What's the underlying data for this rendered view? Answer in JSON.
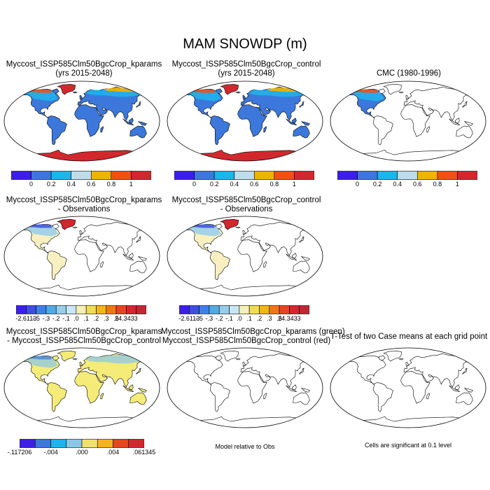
{
  "figure": {
    "title": "MAM SNOWDP (m)"
  },
  "colors": {
    "abs": [
      "#3c1ee8",
      "#3c78dc",
      "#1eb4ec",
      "#bedcec",
      "#f0b400",
      "#f05014",
      "#d2282d"
    ],
    "diff": [
      "#3c1ee8",
      "#3c50dc",
      "#3c82e6",
      "#50aae6",
      "#96cdeb",
      "#c8e6f5",
      "#f5f0b4",
      "#f0dc50",
      "#f5b41e",
      "#f07814",
      "#e6461e",
      "#d2282d",
      "#be2832"
    ],
    "cmp": [
      "#3c1ee8",
      "#3c78dc",
      "#1eb4ec",
      "#8cc8e6",
      "#f0e16e",
      "#f5b41e",
      "#e6461e",
      "#d2282d"
    ],
    "land_blue": "#3c78dc",
    "land_yellow": "#f5eb78"
  },
  "panels": [
    {
      "id": "p1",
      "title_lines": [
        "Myccost_ISSP585Clm50BgcCrop_kparams",
        "(yrs 2015-2048)"
      ],
      "fill": "blue"
    },
    {
      "id": "p2",
      "title_lines": [
        "Myccost_ISSP585Clm50BgcCrop_control",
        "(yrs 2015-2048)"
      ],
      "fill": "blue"
    },
    {
      "id": "p3",
      "title_lines": [
        "CMC (1980-1996)"
      ],
      "fill": "na"
    },
    {
      "id": "p4",
      "title_lines": [
        "Myccost_ISSP585Clm50BgcCrop_kparams",
        "- Observations"
      ],
      "fill": "diff"
    },
    {
      "id": "p5",
      "title_lines": [
        "Myccost_ISSP585Clm50BgcCrop_control",
        "- Observations"
      ],
      "fill": "diff"
    },
    {
      "id": "p6",
      "title_lines": [
        "Myccost_ISSP585Clm50BgcCrop_kparams",
        "- Myccost_ISSP585Clm50BgcCrop_control"
      ],
      "fill": "yellow"
    },
    {
      "id": "p7",
      "title_lines": [
        "Myccost_ISSP585Clm50BgcCrop_kparams (green)",
        "Myccost_ISSP585Clm50BgcCrop_control (red)"
      ],
      "fill": "none"
    },
    {
      "id": "p8",
      "title_lines": [
        "T-Test of two Case means at each grid point"
      ],
      "fill": "none"
    }
  ],
  "colorbars": {
    "abs_labels": [
      "0",
      "0.2",
      "0.4",
      "0.6",
      "0.8",
      "1"
    ],
    "diff_labels": [
      "-2.6113",
      "-.5",
      "-.3",
      "-.2",
      "-.1",
      ".0",
      ".1",
      ".2",
      ".3",
      ".5",
      "24.3433"
    ],
    "cmp_labels": [
      "-.117206",
      "-.004",
      ".000",
      ".004",
      ".061345"
    ]
  },
  "notes": {
    "model_relative": "Model relative to Obs",
    "significance": "Cells are significant at 0.1 level"
  }
}
